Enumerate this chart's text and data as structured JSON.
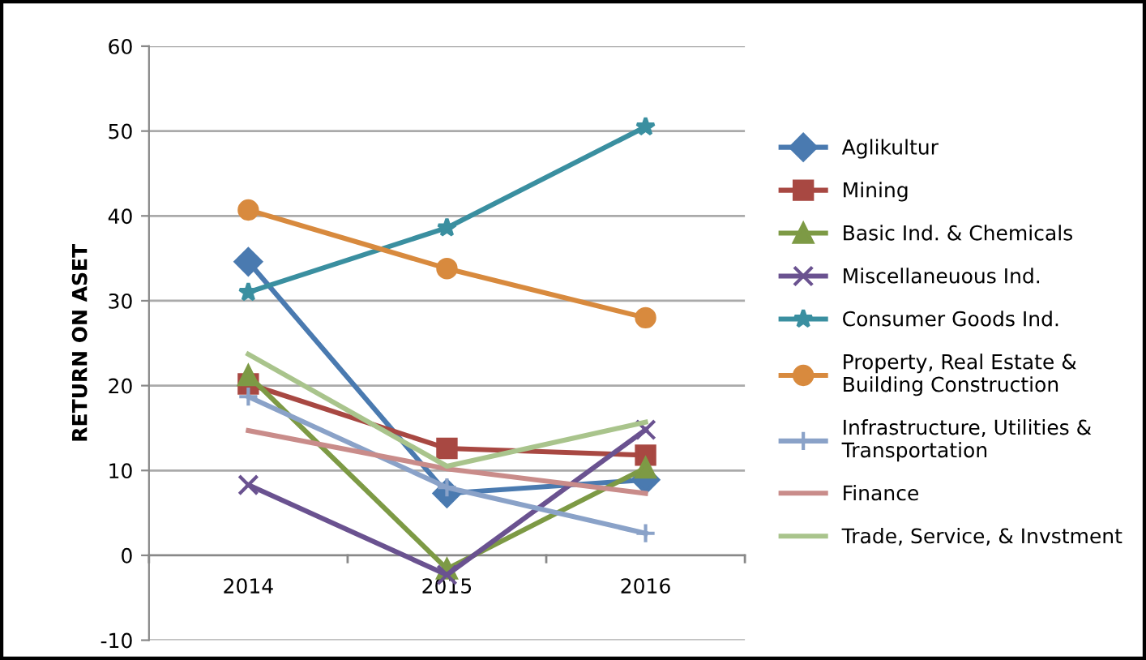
{
  "chart_data": {
    "type": "line",
    "ylabel": "RETURN ON ASET",
    "categories": [
      "2014",
      "2015",
      "2016"
    ],
    "ylim": [
      -10,
      60
    ],
    "yticks": [
      -10,
      0,
      10,
      20,
      30,
      40,
      50,
      60
    ],
    "grid": "y",
    "legend": "right",
    "series": [
      {
        "name": "Aglikultur",
        "color": "#4a7ab0",
        "marker": "diamond",
        "values": [
          34.6,
          7.3,
          8.9
        ]
      },
      {
        "name": "Mining",
        "color": "#a84842",
        "marker": "square",
        "values": [
          20.2,
          12.6,
          11.8
        ]
      },
      {
        "name": "Basic Ind. & Chemicals",
        "color": "#7d9a45",
        "marker": "triangle",
        "values": [
          21.2,
          -1.6,
          10.3
        ]
      },
      {
        "name": "Miscellaneuous Ind.",
        "color": "#6a5290",
        "marker": "cross",
        "values": [
          8.3,
          -2.3,
          14.8
        ]
      },
      {
        "name": "Consumer Goods Ind.",
        "color": "#3a8fa0",
        "marker": "star",
        "values": [
          31.0,
          38.6,
          50.5
        ]
      },
      {
        "name": "Property, Real Estate &\nBuilding Construction",
        "color": "#d88a3e",
        "marker": "circle",
        "values": [
          40.7,
          33.8,
          28.0
        ]
      },
      {
        "name": "Infrastructure, Utilities &\nTransportation",
        "color": "#8aa2c8",
        "marker": "plus",
        "values": [
          18.7,
          8.0,
          2.6
        ]
      },
      {
        "name": "Finance",
        "color": "#c98c8a",
        "marker": "none",
        "values": [
          14.7,
          10.2,
          7.3
        ]
      },
      {
        "name": "Trade, Service, & Invstment",
        "color": "#a9c48c",
        "marker": "none",
        "values": [
          23.7,
          10.5,
          15.7
        ]
      }
    ]
  }
}
